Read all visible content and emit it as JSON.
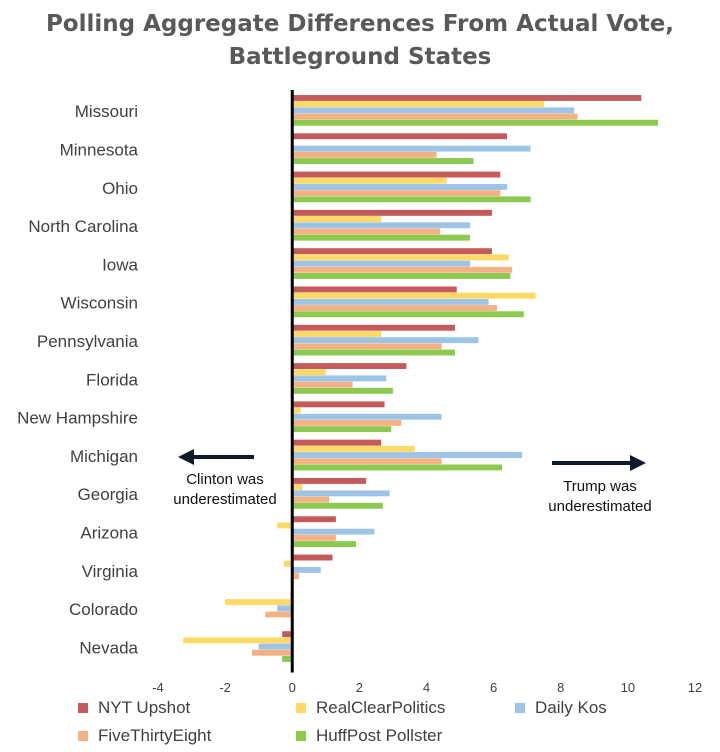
{
  "chart_data": {
    "type": "bar",
    "orientation": "horizontal",
    "title_lines": [
      "Polling Aggregate Differences From Actual Vote,",
      "Battleground States"
    ],
    "categories": [
      "Missouri",
      "Minnesota",
      "Ohio",
      "North Carolina",
      "Iowa",
      "Wisconsin",
      "Pennsylvania",
      "Florida",
      "New Hampshire",
      "Michigan",
      "Georgia",
      "Arizona",
      "Virginia",
      "Colorado",
      "Nevada"
    ],
    "series": [
      {
        "name": "NYT Upshot",
        "color": "#C55A5A",
        "values": [
          10.4,
          6.4,
          6.2,
          5.95,
          5.95,
          4.9,
          4.85,
          3.4,
          2.75,
          2.65,
          2.2,
          1.3,
          1.2,
          -0.05,
          -0.3
        ]
      },
      {
        "name": "RealClearPolitics",
        "color": "#FFD966",
        "values": [
          7.5,
          0.0,
          4.6,
          2.65,
          6.45,
          7.25,
          2.65,
          1.0,
          0.25,
          3.65,
          0.3,
          -0.45,
          -0.25,
          -2.0,
          -3.25
        ]
      },
      {
        "name": "Daily Kos",
        "color": "#9DC3E6",
        "values": [
          8.4,
          7.1,
          6.4,
          5.3,
          5.3,
          5.85,
          5.55,
          2.8,
          4.45,
          6.85,
          2.9,
          2.45,
          0.85,
          -0.45,
          -1.0
        ]
      },
      {
        "name": "FiveThirtyEight",
        "color": "#F4B183",
        "values": [
          8.5,
          4.3,
          6.2,
          4.4,
          6.55,
          6.1,
          4.45,
          1.8,
          3.25,
          4.45,
          1.1,
          1.3,
          0.2,
          -0.8,
          -1.2
        ]
      },
      {
        "name": "HuffPost Pollster",
        "color": "#8CC94F",
        "values": [
          10.9,
          5.4,
          7.1,
          5.3,
          6.5,
          6.9,
          4.85,
          3.0,
          2.95,
          6.25,
          2.7,
          1.9,
          0.0,
          0.0,
          -0.3
        ]
      }
    ],
    "xlim": [
      -4,
      12
    ],
    "x_ticks": [
      "-4",
      "-2",
      "0",
      "2",
      "4",
      "6",
      "8",
      "10",
      "12"
    ],
    "grid": false,
    "legend_position": "bottom",
    "annotations": {
      "left_lines": [
        "Clinton was",
        "underestimated"
      ],
      "right_lines": [
        "Trump was",
        "underestimated"
      ]
    }
  }
}
